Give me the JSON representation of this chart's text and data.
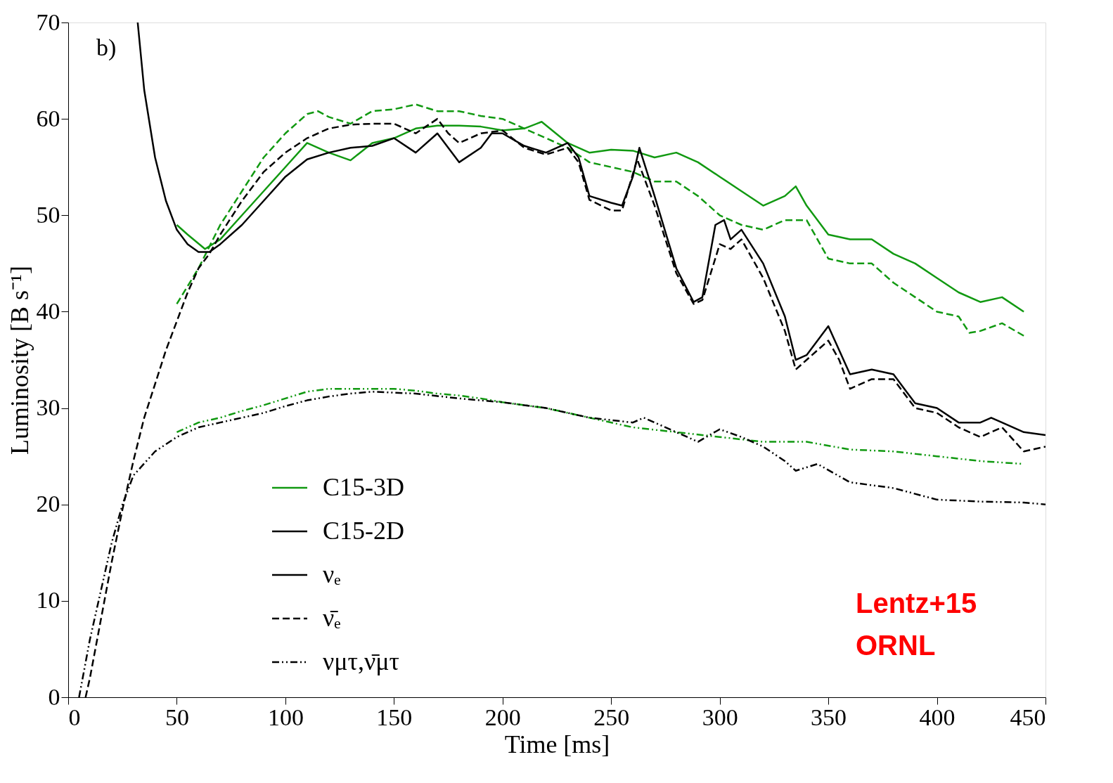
{
  "chart_data": {
    "type": "line",
    "xlabel": "Time [ms]",
    "ylabel": "Luminosity [B s⁻¹]",
    "xlim": [
      0,
      450
    ],
    "xticks": [
      0,
      50,
      100,
      150,
      200,
      250,
      300,
      350,
      400,
      450
    ],
    "ylim": [
      0,
      70
    ],
    "yticks": [
      0,
      10,
      20,
      30,
      40,
      50,
      60,
      70
    ],
    "grid": false,
    "legend": "bottom left",
    "marker": "none",
    "annotations": [
      "b)",
      "νₑ",
      "ν̄ₑ",
      "νμτ,ν̄μτ",
      "Lentz+15",
      "ORNL"
    ],
    "series": [
      {
        "name": "C15-3D",
        "color": "#119911",
        "line_style": "solid",
        "x": [
          50,
          55,
          63,
          70,
          80,
          90,
          100,
          110,
          120,
          130,
          140,
          150,
          160,
          170,
          180,
          190,
          200,
          210,
          218,
          230,
          240,
          250,
          260,
          270,
          280,
          290,
          300,
          310,
          320,
          330,
          335,
          340,
          350,
          360,
          370,
          380,
          390,
          400,
          410,
          420,
          430,
          440
        ],
        "values": [
          49,
          48,
          46.5,
          47.5,
          50,
          52.5,
          55,
          57.5,
          56.5,
          55.7,
          57.5,
          58,
          59,
          59.3,
          59.3,
          59.2,
          58.8,
          59,
          59.7,
          57.5,
          56.5,
          56.8,
          56.7,
          56,
          56.5,
          55.5,
          54,
          52.5,
          51,
          52,
          53,
          51,
          48,
          47.5,
          47.5,
          46,
          45,
          43.5,
          42,
          41,
          41.5,
          40
        ]
      },
      {
        "color": "#119911",
        "line_style": "dashed",
        "x": [
          50,
          60,
          70,
          80,
          90,
          100,
          110,
          115,
          120,
          130,
          140,
          150,
          160,
          170,
          180,
          190,
          200,
          210,
          220,
          230,
          240,
          250,
          260,
          270,
          280,
          290,
          300,
          310,
          320,
          330,
          340,
          350,
          360,
          370,
          380,
          390,
          400,
          410,
          415,
          420,
          430,
          440
        ],
        "values": [
          40.8,
          44.5,
          49,
          52.5,
          56,
          58.5,
          60.5,
          60.8,
          60.2,
          59.5,
          60.8,
          61,
          61.5,
          60.8,
          60.8,
          60.3,
          60,
          59,
          58,
          57,
          55.5,
          55,
          54.5,
          53.5,
          53.5,
          52,
          50,
          49,
          48.5,
          49.5,
          49.5,
          45.5,
          45,
          45,
          43,
          41.5,
          40,
          39.5,
          37.8,
          38,
          38.8,
          37.5
        ]
      },
      {
        "color": "#119911",
        "line_style": "dotted",
        "x": [
          50,
          60,
          70,
          80,
          90,
          100,
          110,
          120,
          130,
          140,
          150,
          160,
          170,
          180,
          190,
          200,
          220,
          240,
          260,
          280,
          300,
          320,
          340,
          360,
          380,
          400,
          420,
          440
        ],
        "values": [
          27.5,
          28.5,
          29,
          29.7,
          30.3,
          31,
          31.7,
          32,
          32,
          32,
          32,
          31.8,
          31.5,
          31.3,
          31,
          30.6,
          30,
          29,
          28,
          27.5,
          27,
          26.5,
          26.5,
          25.7,
          25.5,
          25,
          24.5,
          24.2
        ]
      },
      {
        "name": "C15-2D",
        "color": "#000000",
        "line_style": "solid",
        "x": [
          32,
          35,
          40,
          45,
          50,
          55,
          60,
          65,
          70,
          80,
          90,
          100,
          110,
          120,
          130,
          140,
          150,
          160,
          170,
          175,
          180,
          190,
          195,
          200,
          210,
          220,
          230,
          235,
          240,
          250,
          255,
          260,
          263,
          270,
          280,
          288,
          292,
          298,
          302,
          305,
          310,
          320,
          330,
          335,
          340,
          350,
          355,
          360,
          370,
          380,
          385,
          390,
          400,
          410,
          420,
          425,
          430,
          440,
          450
        ],
        "values": [
          70,
          63,
          56,
          51.5,
          48.5,
          47,
          46.2,
          46.2,
          47,
          49,
          51.5,
          54,
          55.8,
          56.5,
          57,
          57.2,
          58,
          56.5,
          58.5,
          57,
          55.5,
          57,
          58.5,
          58.5,
          57.2,
          56.5,
          57.5,
          56,
          52,
          51.3,
          51,
          54,
          57,
          52,
          44.5,
          41,
          41.5,
          49,
          49.5,
          47.5,
          48.5,
          45,
          39.5,
          35,
          35.5,
          38.5,
          36,
          33.5,
          34,
          33.5,
          32,
          30.5,
          30,
          28.5,
          28.5,
          29,
          28.5,
          27.5,
          27.2
        ]
      },
      {
        "color": "#000000",
        "line_style": "dashed",
        "x": [
          8,
          10,
          15,
          20,
          25,
          30,
          35,
          40,
          45,
          50,
          55,
          60,
          65,
          70,
          80,
          90,
          100,
          110,
          120,
          130,
          140,
          150,
          160,
          170,
          175,
          180,
          190,
          200,
          210,
          220,
          230,
          235,
          240,
          250,
          255,
          262,
          270,
          280,
          288,
          292,
          300,
          305,
          310,
          320,
          330,
          335,
          340,
          350,
          355,
          360,
          370,
          380,
          390,
          400,
          410,
          420,
          430,
          440,
          450
        ],
        "values": [
          0,
          2,
          8,
          14,
          19.5,
          24.5,
          29,
          32.5,
          36,
          39,
          42,
          44.5,
          46,
          48,
          51.5,
          54.5,
          56.5,
          58,
          59,
          59.4,
          59.5,
          59.5,
          58.5,
          60,
          58.5,
          57.5,
          58.5,
          58.8,
          57,
          56.3,
          57,
          55.5,
          51.6,
          50.5,
          50.5,
          55.8,
          51,
          44,
          40.8,
          41.2,
          47,
          46.5,
          47.5,
          43.5,
          38,
          34,
          35,
          37,
          35,
          32,
          33,
          33,
          30,
          29.5,
          28,
          27,
          28,
          25.5,
          26
        ]
      },
      {
        "color": "#000000",
        "line_style": "dotted",
        "x": [
          5,
          10,
          15,
          20,
          25,
          30,
          40,
          50,
          60,
          70,
          80,
          90,
          100,
          110,
          120,
          130,
          140,
          150,
          160,
          180,
          200,
          220,
          240,
          260,
          265,
          270,
          290,
          300,
          310,
          320,
          330,
          335,
          345,
          360,
          370,
          380,
          400,
          420,
          440,
          450
        ],
        "values": [
          0,
          6,
          11,
          16,
          20,
          23,
          25.5,
          27,
          28,
          28.5,
          29,
          29.5,
          30.2,
          30.8,
          31.2,
          31.5,
          31.7,
          31.6,
          31.5,
          31,
          30.6,
          30,
          29,
          28.5,
          29,
          28.5,
          26.5,
          27.8,
          27,
          26,
          24.5,
          23.5,
          24.2,
          22.3,
          22,
          21.7,
          20.5,
          20.3,
          20.2,
          20
        ]
      }
    ]
  }
}
